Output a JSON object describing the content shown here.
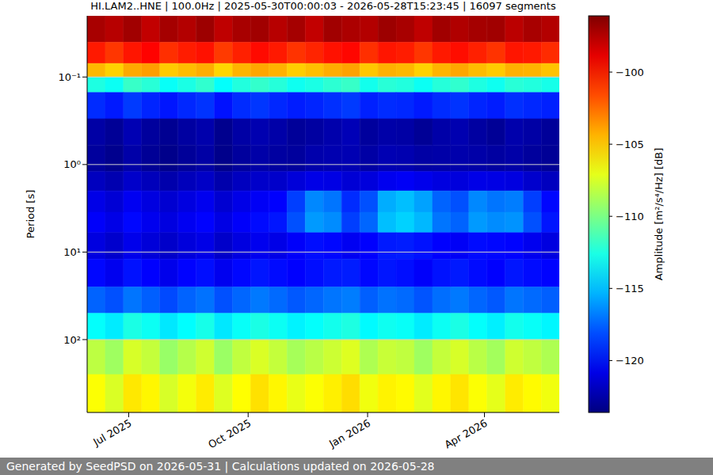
{
  "chart_data": {
    "type": "heatmap",
    "title": "HI.LAM2..HNE | 100.0Hz | 2025-05-30T00:00:03 - 2026-05-28T15:23:45 | 16097 segments",
    "y_label": "Period [s]",
    "footer": "Generated by SeedPSD on 2026-05-31 | Calculations updated on 2026-05-28",
    "log": "y",
    "grid": true,
    "xlim": [
      "2025-05-30T00:00:03",
      "2026-05-28T15:23:45"
    ],
    "xticks": [
      {
        "value": "2025-07-01",
        "label": "Jul 2025"
      },
      {
        "value": "2025-10-01",
        "label": "Oct 2025"
      },
      {
        "value": "2026-01-01",
        "label": "Jan 2026"
      },
      {
        "value": "2026-04-01",
        "label": "Apr 2026"
      }
    ],
    "ylim": [
      0.02,
      680
    ],
    "yticks": [
      {
        "value": 0.1,
        "label": "10⁻¹"
      },
      {
        "value": 1,
        "label": "10⁰"
      },
      {
        "value": 10,
        "label": "10¹"
      },
      {
        "value": 100,
        "label": "10²"
      }
    ],
    "x_edges": [
      "2025-05-30",
      "2025-06-13",
      "2025-06-27",
      "2025-07-11",
      "2025-07-25",
      "2025-08-08",
      "2025-08-22",
      "2025-09-05",
      "2025-09-19",
      "2025-10-03",
      "2025-10-17",
      "2025-10-31",
      "2025-11-14",
      "2025-11-28",
      "2025-12-12",
      "2025-12-26",
      "2026-01-09",
      "2026-01-23",
      "2026-02-06",
      "2026-02-20",
      "2026-03-06",
      "2026-03-20",
      "2026-04-03",
      "2026-04-17",
      "2026-05-01",
      "2026-05-15",
      "2026-05-29"
    ],
    "y_edges": [
      0.02,
      0.04,
      0.07,
      0.1,
      0.15,
      0.3,
      0.6,
      1.2,
      2,
      3.5,
      6,
      12,
      25,
      50,
      100,
      250,
      680
    ],
    "cells": [
      [
        -97.2,
        -97.6,
        -97.0,
        -97.9,
        -97.1,
        -97.5,
        -96.9,
        -97.8,
        -97.2,
        -97.0,
        -97.6,
        -97.1,
        -97.9,
        -97.0,
        -97.3,
        -97.5,
        -96.9,
        -97.2,
        -97.8,
        -97.0,
        -97.4,
        -97.1,
        -97.0,
        -97.7,
        -97.2,
        -97.5
      ],
      [
        -100.2,
        -101.0,
        -100.1,
        -99.6,
        -100.8,
        -100.3,
        -100.0,
        -101.1,
        -100.4,
        -99.8,
        -100.2,
        -100.9,
        -100.5,
        -100.0,
        -99.7,
        -100.8,
        -100.1,
        -100.3,
        -101.0,
        -100.2,
        -99.9,
        -100.4,
        -100.9,
        -100.1,
        -100.2,
        -100.7
      ],
      [
        -104.5,
        -105.2,
        -104.1,
        -103.8,
        -105.0,
        -104.6,
        -104.2,
        -105.3,
        -104.4,
        -104.0,
        -104.3,
        -105.1,
        -104.7,
        -104.2,
        -103.9,
        -104.9,
        -104.3,
        -104.5,
        -105.2,
        -104.4,
        -104.0,
        -104.6,
        -105.0,
        -104.3,
        -104.4,
        -104.8
      ],
      [
        -112.5,
        -113.0,
        -111.8,
        -112.2,
        -113.1,
        -112.6,
        -112.0,
        -113.2,
        -112.4,
        -111.9,
        -112.3,
        -112.9,
        -112.6,
        -112.1,
        -111.8,
        -112.8,
        -112.2,
        -112.4,
        -113.0,
        -112.3,
        -112.0,
        -112.5,
        -112.9,
        -112.2,
        -112.4,
        -112.7
      ],
      [
        -119.0,
        -119.5,
        -118.6,
        -119.2,
        -119.6,
        -119.1,
        -118.8,
        -119.7,
        -119.0,
        -118.7,
        -119.1,
        -119.4,
        -119.2,
        -118.9,
        -118.6,
        -119.3,
        -119.0,
        -119.1,
        -119.5,
        -119.0,
        -118.8,
        -119.2,
        -119.4,
        -118.9,
        -119.1,
        -119.3
      ],
      [
        -122.6,
        -123.0,
        -122.2,
        -122.8,
        -123.1,
        -122.7,
        -122.4,
        -123.2,
        -122.6,
        -122.3,
        -122.5,
        -122.9,
        -122.7,
        -122.4,
        -122.1,
        -122.8,
        -122.5,
        -122.6,
        -123.0,
        -122.5,
        -122.3,
        -122.7,
        -123.0,
        -122.4,
        -122.6,
        -122.9
      ],
      [
        -122.8,
        -123.2,
        -122.5,
        -123.0,
        -123.3,
        -122.9,
        -122.6,
        -123.3,
        -122.8,
        -122.5,
        -122.7,
        -122.8,
        -122.4,
        -122.3,
        -122.2,
        -122.6,
        -122.2,
        -122.3,
        -122.6,
        -122.5,
        -122.4,
        -122.5,
        -122.7,
        -122.5,
        -122.8,
        -123.0
      ],
      [
        -121.9,
        -122.3,
        -121.6,
        -122.0,
        -122.4,
        -122.0,
        -121.7,
        -122.4,
        -121.9,
        -121.6,
        -121.6,
        -121.2,
        -120.8,
        -120.9,
        -121.3,
        -121.1,
        -120.6,
        -120.4,
        -120.7,
        -121.0,
        -121.1,
        -120.8,
        -120.9,
        -121.0,
        -121.5,
        -121.9
      ],
      [
        -120.8,
        -121.3,
        -120.5,
        -121.0,
        -121.4,
        -121.0,
        -120.6,
        -121.4,
        -120.8,
        -120.4,
        -120.2,
        -118.5,
        -116.5,
        -117.0,
        -119.0,
        -118.0,
        -115.5,
        -115.0,
        -115.8,
        -117.5,
        -118.0,
        -116.5,
        -117.0,
        -116.8,
        -118.5,
        -120.0
      ],
      [
        -120.3,
        -120.8,
        -120.0,
        -120.6,
        -121.0,
        -120.5,
        -120.1,
        -120.9,
        -120.3,
        -119.9,
        -119.6,
        -118.0,
        -116.0,
        -116.4,
        -118.5,
        -117.4,
        -115.0,
        -114.5,
        -115.2,
        -117.0,
        -117.5,
        -116.0,
        -116.4,
        -116.2,
        -118.0,
        -119.6
      ],
      [
        -121.0,
        -121.5,
        -120.7,
        -121.2,
        -121.6,
        -121.1,
        -120.8,
        -121.6,
        -121.0,
        -120.6,
        -120.8,
        -120.3,
        -119.8,
        -120.0,
        -120.5,
        -120.2,
        -119.5,
        -119.4,
        -119.7,
        -120.2,
        -120.4,
        -119.9,
        -120.0,
        -120.1,
        -120.6,
        -121.0
      ],
      [
        -120.0,
        -120.6,
        -119.7,
        -120.2,
        -120.7,
        -120.1,
        -119.8,
        -120.6,
        -120.0,
        -119.6,
        -119.9,
        -120.2,
        -119.8,
        -119.5,
        -119.4,
        -120.0,
        -119.6,
        -119.8,
        -120.3,
        -119.7,
        -119.5,
        -119.9,
        -120.2,
        -119.6,
        -119.9,
        -120.1
      ],
      [
        -117.5,
        -118.0,
        -117.0,
        -117.6,
        -118.2,
        -117.5,
        -117.1,
        -118.0,
        -117.4,
        -116.9,
        -117.3,
        -117.8,
        -117.4,
        -117.0,
        -116.8,
        -117.6,
        -117.1,
        -117.3,
        -117.9,
        -117.2,
        -116.9,
        -117.4,
        -117.8,
        -117.0,
        -117.3,
        -117.6
      ],
      [
        -113.2,
        -113.8,
        -112.6,
        -113.0,
        -113.9,
        -113.3,
        -112.7,
        -113.9,
        -113.1,
        -112.6,
        -113.0,
        -113.6,
        -113.2,
        -112.8,
        -112.5,
        -113.4,
        -112.9,
        -113.1,
        -113.8,
        -113.0,
        -112.6,
        -113.2,
        -113.7,
        -112.8,
        -113.1,
        -113.5
      ],
      [
        -108.2,
        -109.0,
        -107.5,
        -108.0,
        -109.2,
        -108.4,
        -107.7,
        -109.1,
        -108.1,
        -107.4,
        -108.0,
        -108.8,
        -108.3,
        -107.8,
        -107.3,
        -108.6,
        -107.9,
        -108.1,
        -109.0,
        -108.0,
        -107.5,
        -108.3,
        -108.9,
        -107.7,
        -108.1,
        -108.6
      ],
      [
        -106.5,
        -107.4,
        -105.8,
        -106.2,
        -107.5,
        -106.7,
        -105.9,
        -107.3,
        -106.4,
        -105.6,
        -106.2,
        -107.0,
        -106.5,
        -106.0,
        -105.5,
        -106.8,
        -106.1,
        -106.3,
        -107.2,
        -106.2,
        -105.7,
        -106.5,
        -107.1,
        -105.9,
        -106.3,
        -106.8
      ]
    ],
    "colorbar": {
      "label": "Amplitude [m²/s⁴/Hz] [dB]",
      "range": [
        -123.6,
        -96.1
      ],
      "ticks": [
        {
          "value": -100,
          "label": "−100"
        },
        {
          "value": -105,
          "label": "−105"
        },
        {
          "value": -110,
          "label": "−110"
        },
        {
          "value": -115,
          "label": "−115"
        },
        {
          "value": -120,
          "label": "−120"
        }
      ]
    }
  }
}
